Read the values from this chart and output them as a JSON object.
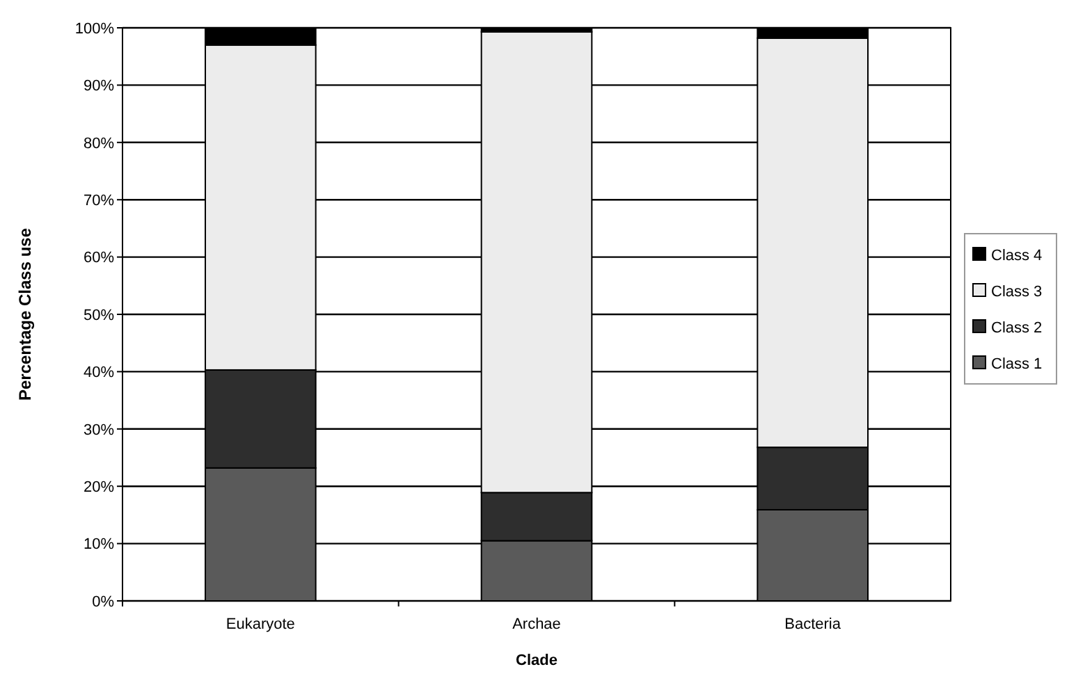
{
  "chart_data": {
    "type": "bar",
    "stacked": true,
    "xlabel": "Clade",
    "ylabel": "Percentage Class use",
    "categories": [
      "Eukaryote",
      "Archae",
      "Bacteria"
    ],
    "series": [
      {
        "name": "Class 1",
        "color": "#5a5a5a",
        "values": [
          23.2,
          10.5,
          15.9
        ]
      },
      {
        "name": "Class 2",
        "color": "#2e2e2e",
        "values": [
          17.1,
          8.4,
          10.9
        ]
      },
      {
        "name": "Class 3",
        "color": "#ececec",
        "values": [
          56.7,
          80.4,
          71.4
        ]
      },
      {
        "name": "Class 4",
        "color": "#000000",
        "values": [
          3,
          0.7,
          1.8
        ]
      }
    ],
    "ylim": [
      0,
      100
    ],
    "yticks": [
      {
        "value": 0,
        "label": "0%"
      },
      {
        "value": 10,
        "label": "10%"
      },
      {
        "value": 20,
        "label": "20%"
      },
      {
        "value": 30,
        "label": "30%"
      },
      {
        "value": 40,
        "label": "40%"
      },
      {
        "value": 50,
        "label": "50%"
      },
      {
        "value": 60,
        "label": "60%"
      },
      {
        "value": 70,
        "label": "70%"
      },
      {
        "value": 80,
        "label": "80%"
      },
      {
        "value": 90,
        "label": "90%"
      },
      {
        "value": 100,
        "label": "100%"
      }
    ],
    "grid": "y",
    "legend": "right"
  }
}
